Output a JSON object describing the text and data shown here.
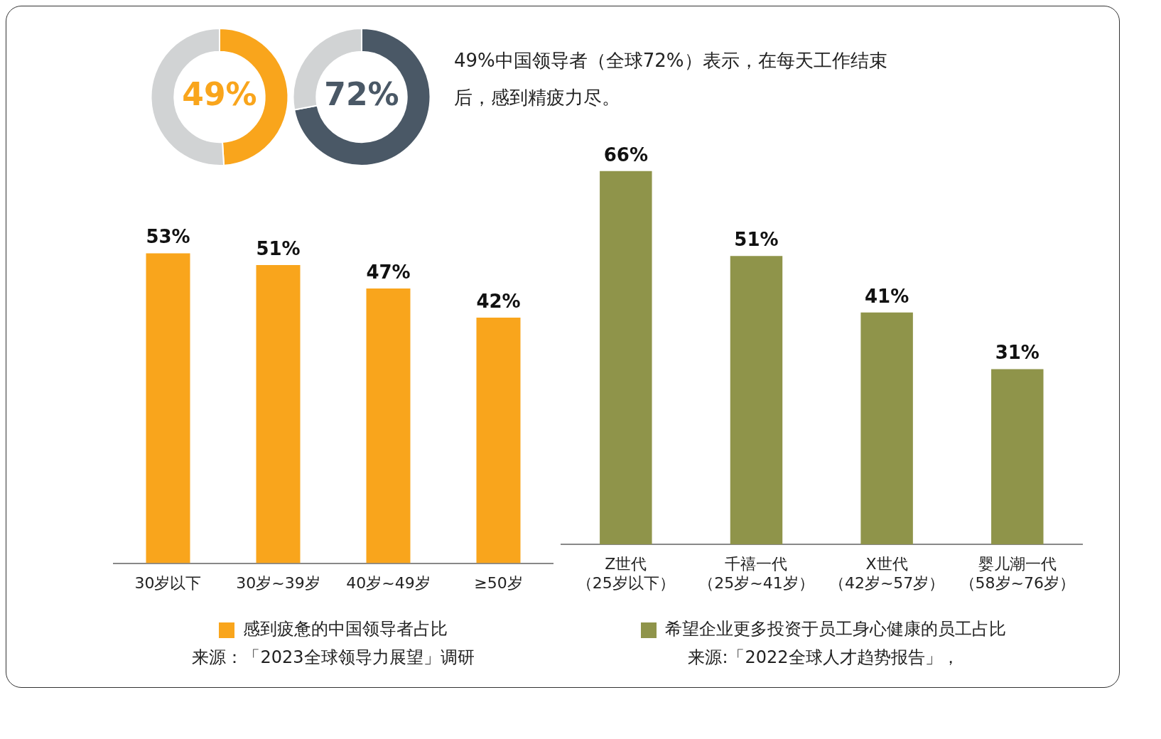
{
  "chart_data": [
    {
      "type": "donut",
      "categories": [
        null,
        null
      ],
      "values": [
        49,
        51
      ],
      "colors": [
        "#f9a51c",
        "#d1d3d4"
      ],
      "value_labels": [
        "49%",
        null
      ]
    },
    {
      "type": "donut",
      "categories": [
        null,
        null
      ],
      "values": [
        72,
        28
      ],
      "colors": [
        "#4a5866",
        "#d1d3d4"
      ],
      "value_labels": [
        "72%",
        null
      ]
    },
    {
      "type": "other",
      "title": "49%中国领导者（全球72%）表示，在每天工作结束后，感到精疲力尽。"
    },
    {
      "type": "bar",
      "categories": [
        "30岁以下",
        "30岁~39岁",
        "40岁~49岁",
        "≥50岁"
      ],
      "series": [
        {
          "name": "感到疲惫的中国领导者占比",
          "color": "#f9a51c",
          "values": [
            53,
            51,
            47,
            42
          ],
          "value_labels": [
            "53%",
            "51%",
            "47%",
            "42%"
          ]
        }
      ],
      "tick_labels": "x",
      "legend": "bottom",
      "annotations": [
        "来源：「2023全球领导力展望」调研"
      ]
    },
    {
      "type": "bar",
      "categories": [
        "Z世代（25岁以下）",
        "千禧一代（25岁~41岁）",
        "X世代（42岁~57岁）",
        "婴儿潮一代（58岁~76岁）"
      ],
      "series": [
        {
          "name": "希望企业更多投资于员工身心健康的员工占比",
          "color": "#8f944a",
          "values": [
            66,
            51,
            41,
            31
          ],
          "value_labels": [
            "66%",
            "51%",
            "41%",
            "31%"
          ]
        }
      ],
      "tick_labels": "x",
      "legend": "bottom",
      "annotations": [
        "来源:「2022全球人才趋势报告」，"
      ]
    }
  ]
}
